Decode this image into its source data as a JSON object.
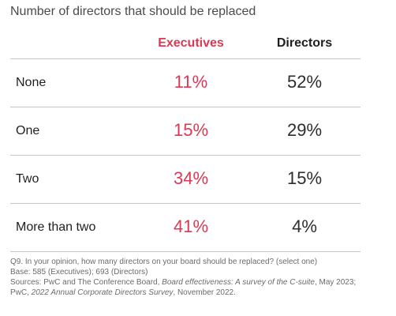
{
  "title": "Number of directors that should be replaced",
  "chart_data": {
    "type": "table",
    "title": "Number of directors that should be replaced",
    "columns": [
      "Executives",
      "Directors"
    ],
    "rows": [
      {
        "label": "None",
        "executives": "11%",
        "directors": "52%"
      },
      {
        "label": "One",
        "executives": "15%",
        "directors": "29%"
      },
      {
        "label": "Two",
        "executives": "34%",
        "directors": "15%"
      },
      {
        "label": "More than two",
        "executives": "41%",
        "directors": "4%"
      }
    ],
    "series": [
      {
        "name": "Executives",
        "values": [
          11,
          15,
          34,
          41
        ]
      },
      {
        "name": "Directors",
        "values": [
          52,
          29,
          15,
          4
        ]
      }
    ],
    "categories": [
      "None",
      "One",
      "Two",
      "More than two"
    ]
  },
  "colors": {
    "executives": "#d93954",
    "directors": "#1f1f1f"
  },
  "footnote": {
    "question": "Q9. In your opinion, how many directors on your board should be replaced? (select one)",
    "base": "Base: 585 (Executives); 693 (Directors)",
    "sources_prefix": "Sources: PwC and The Conference Board, ",
    "sources_title1": "Board effectiveness: A survey of the C-suite",
    "sources_mid": ", May 2023;",
    "sources_line2_prefix": "PwC, ",
    "sources_title2": "2022 Annual Corporate Directors Survey",
    "sources_suffix": ", November 2022."
  }
}
